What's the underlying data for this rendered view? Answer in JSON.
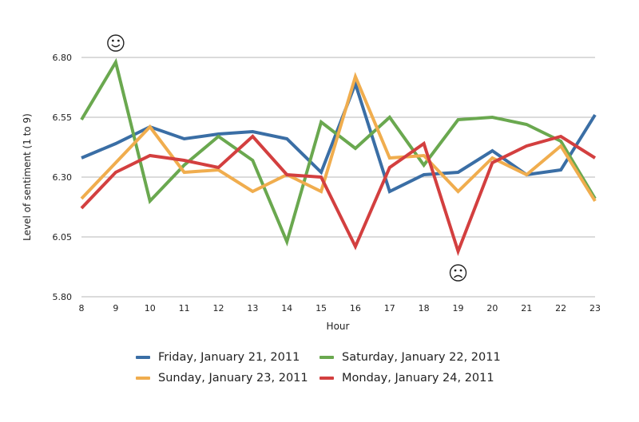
{
  "chart_data": {
    "type": "line",
    "title": "",
    "xlabel": "Hour",
    "ylabel": "Level of sentiment (1 to 9)",
    "x": [
      8,
      9,
      10,
      11,
      12,
      13,
      14,
      15,
      16,
      17,
      18,
      19,
      20,
      21,
      22,
      23
    ],
    "x_tick_labels": [
      "8",
      "9",
      "10",
      "11",
      "12",
      "13",
      "14",
      "15",
      "16",
      "17",
      "18",
      "19",
      "20",
      "21",
      "22",
      "23"
    ],
    "ylim": [
      5.8,
      6.8
    ],
    "y_ticks": [
      5.8,
      6.05,
      6.3,
      6.55,
      6.8
    ],
    "y_tick_labels": [
      "5.80",
      "6.05",
      "6.30",
      "6.55",
      "6.80"
    ],
    "grid": true,
    "legend_position": "bottom",
    "series": [
      {
        "name": "Friday, January 21, 2011",
        "color": "#3a6ea5",
        "values": [
          6.38,
          6.44,
          6.51,
          6.46,
          6.48,
          6.49,
          6.46,
          6.32,
          6.69,
          6.24,
          6.31,
          6.32,
          6.41,
          6.31,
          6.33,
          6.56
        ]
      },
      {
        "name": "Saturday, January 22, 2011",
        "color": "#6aa84f",
        "values": [
          6.54,
          6.78,
          6.2,
          6.35,
          6.47,
          6.37,
          6.03,
          6.53,
          6.42,
          6.55,
          6.35,
          6.54,
          6.55,
          6.52,
          6.45,
          6.21
        ]
      },
      {
        "name": "Sunday, January 23, 2011",
        "color": "#f0ad4e",
        "values": [
          6.21,
          6.36,
          6.51,
          6.32,
          6.33,
          6.24,
          6.31,
          6.24,
          6.72,
          6.38,
          6.39,
          6.24,
          6.38,
          6.31,
          6.43,
          6.2
        ]
      },
      {
        "name": "Monday, January 24, 2011",
        "color": "#d33f3f",
        "values": [
          6.17,
          6.32,
          6.39,
          6.37,
          6.34,
          6.47,
          6.31,
          6.3,
          6.01,
          6.34,
          6.44,
          5.99,
          6.36,
          6.43,
          6.47,
          6.38
        ]
      }
    ],
    "annotations": [
      {
        "symbol": "☺",
        "x": 9,
        "y": 6.86
      },
      {
        "symbol": "☹",
        "x": 19,
        "y": 5.9
      }
    ]
  }
}
